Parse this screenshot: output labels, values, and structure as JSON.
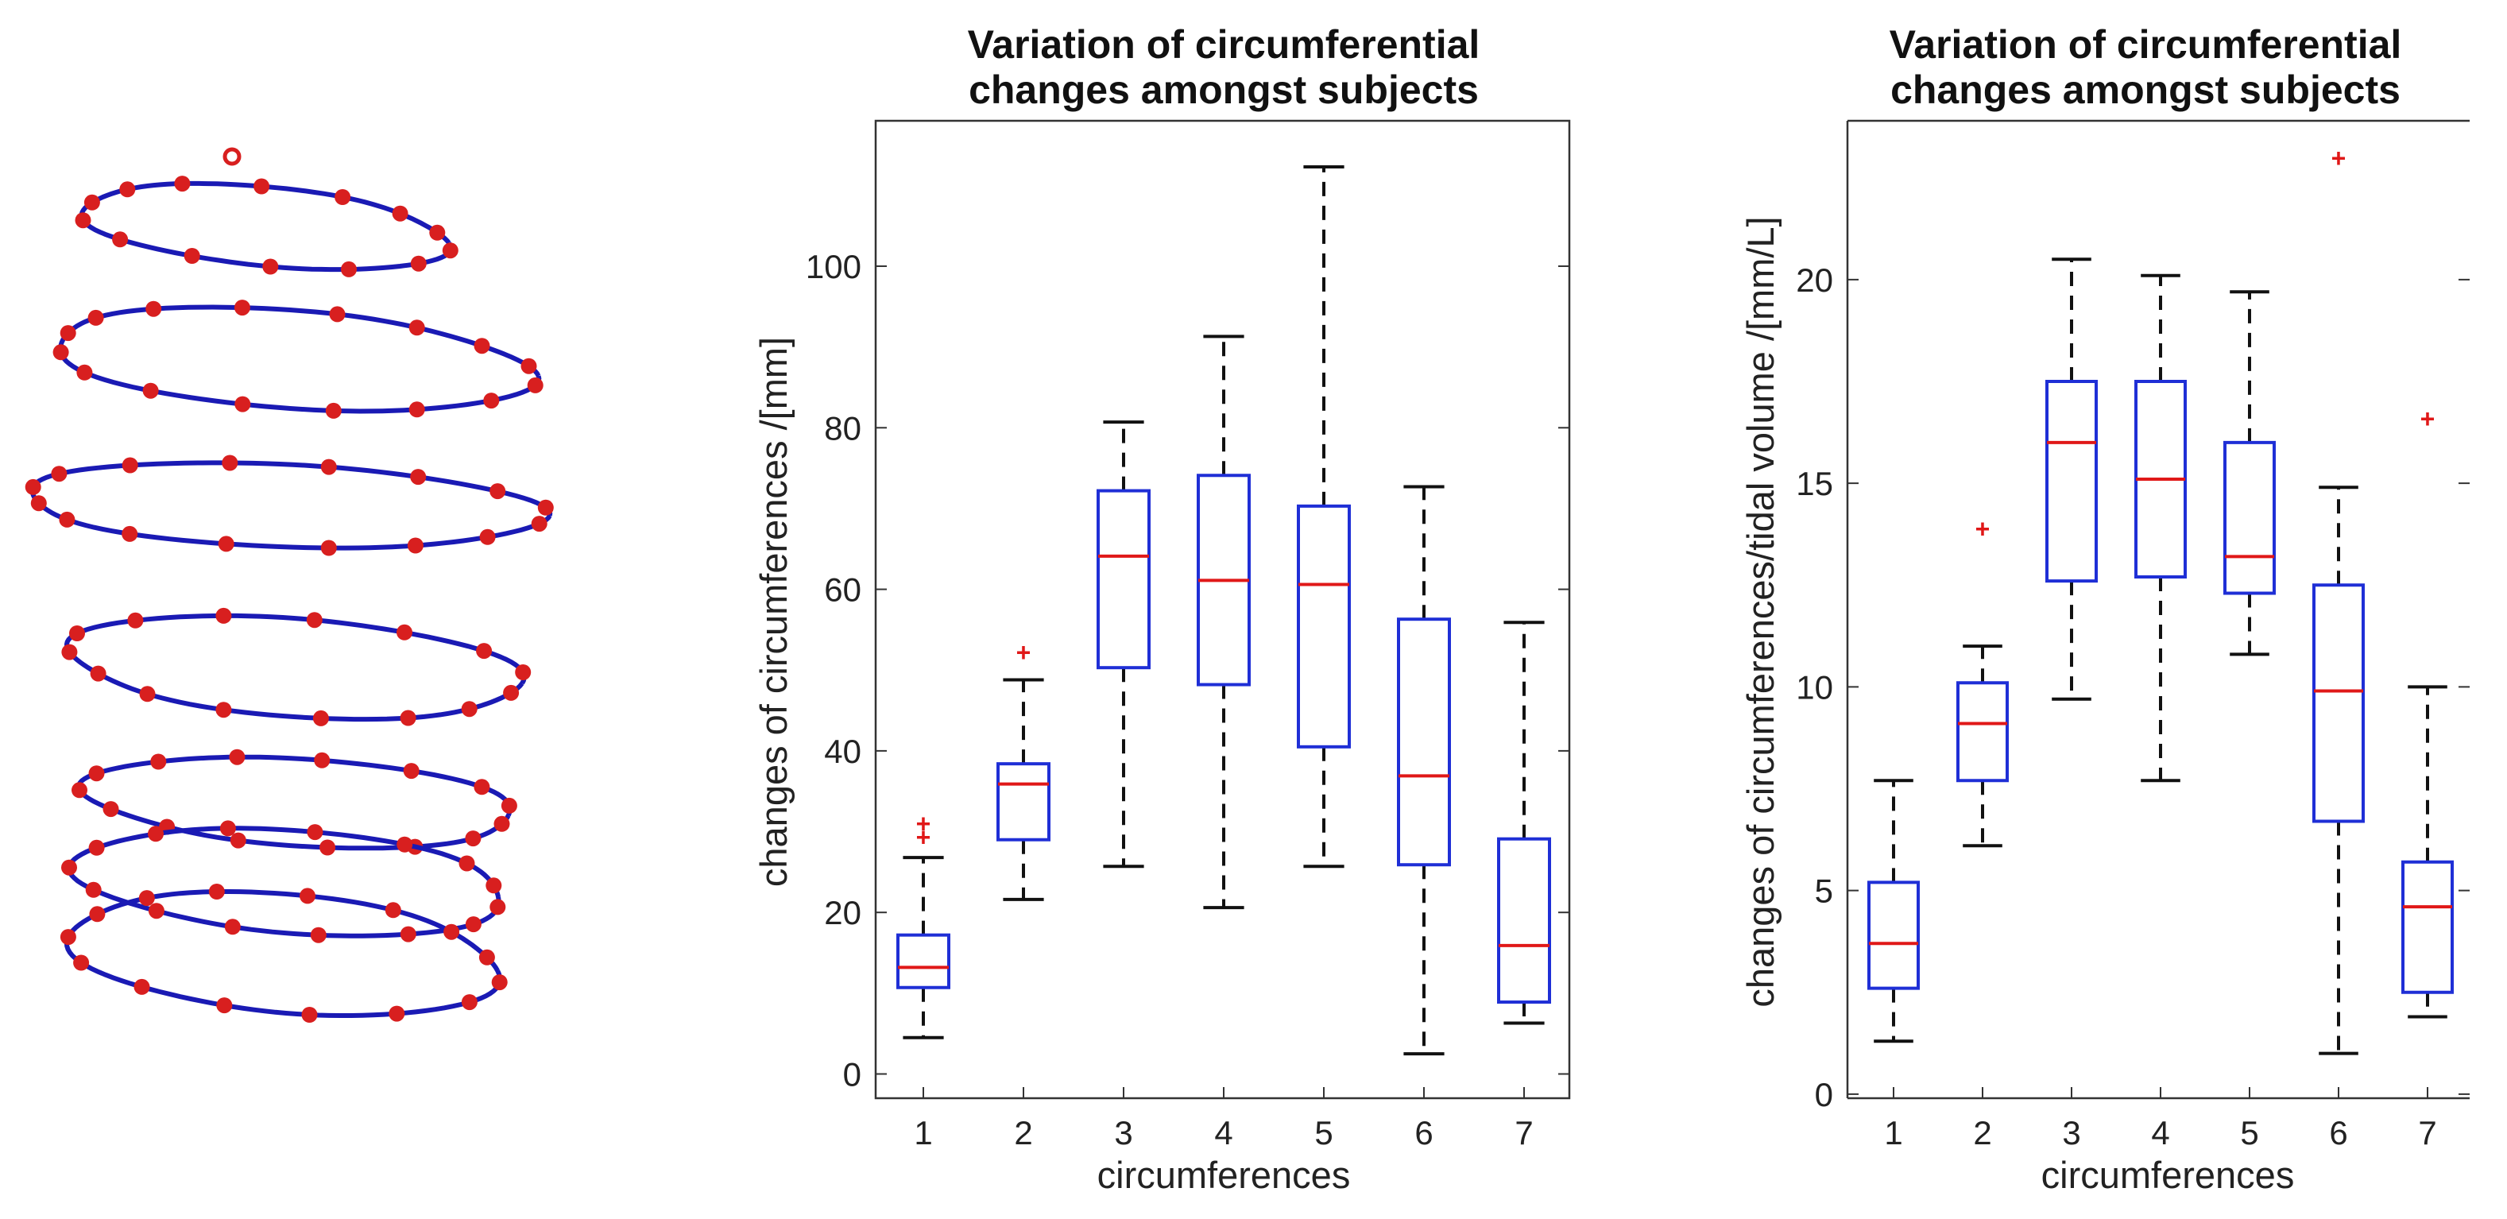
{
  "chart_data": [
    {
      "type": "diagram",
      "description_name": "rings",
      "rings": 7,
      "colors": {
        "curve": "#1a1ab4",
        "marker": "#d81f1f"
      }
    },
    {
      "type": "boxplot",
      "title": [
        "Variation of circumferential",
        "changes amongst subjects"
      ],
      "xlabel": "circumferences",
      "ylabel": "changes of circumferences /[mm]",
      "categories": [
        "1",
        "2",
        "3",
        "4",
        "5",
        "6",
        "7"
      ],
      "ylim": [
        -3,
        118
      ],
      "yticks": [
        0,
        20,
        40,
        60,
        80,
        100
      ],
      "boxes": [
        {
          "whisker_low": 4.5,
          "q1": 10.7,
          "median": 13.2,
          "q3": 17.2,
          "whisker_high": 26.8,
          "outliers": [
            29.4,
            31.1
          ],
          "outlier_label": "+"
        },
        {
          "whisker_low": 21.6,
          "q1": 29.0,
          "median": 35.9,
          "q3": 38.4,
          "whisker_high": 48.8,
          "outliers": [
            52.3
          ],
          "outlier_label": "+"
        },
        {
          "whisker_low": 25.7,
          "q1": 50.3,
          "median": 64.1,
          "q3": 72.2,
          "whisker_high": 80.7,
          "outliers": [],
          "outlier_label": "+"
        },
        {
          "whisker_low": 20.6,
          "q1": 48.2,
          "median": 61.1,
          "q3": 74.1,
          "whisker_high": 91.3,
          "outliers": [],
          "outlier_label": "+"
        },
        {
          "whisker_low": 25.7,
          "q1": 40.5,
          "median": 60.6,
          "q3": 70.3,
          "whisker_high": 112.3,
          "outliers": [],
          "outlier_label": "+"
        },
        {
          "whisker_low": 2.5,
          "q1": 25.9,
          "median": 36.9,
          "q3": 56.3,
          "whisker_high": 72.7,
          "outliers": [],
          "outlier_label": "+"
        },
        {
          "whisker_low": 6.3,
          "q1": 8.9,
          "median": 15.9,
          "q3": 29.1,
          "whisker_high": 55.9,
          "outliers": [],
          "outlier_label": "+"
        }
      ]
    },
    {
      "type": "boxplot",
      "title": [
        "Variation of circumferential",
        "changes amongst subjects"
      ],
      "xlabel": "circumferences",
      "ylabel": "changes of circumferences/tidal volume /[mm/L]",
      "categories": [
        "1",
        "2",
        "3",
        "4",
        "5",
        "6",
        "7"
      ],
      "ylim": [
        -0.1,
        23.9
      ],
      "yticks": [
        0,
        5,
        10,
        15,
        20
      ],
      "boxes": [
        {
          "whisker_low": 1.3,
          "q1": 2.6,
          "median": 3.7,
          "q3": 5.2,
          "whisker_high": 7.7,
          "outliers": [],
          "outlier_label": "+"
        },
        {
          "whisker_low": 6.1,
          "q1": 7.7,
          "median": 9.1,
          "q3": 10.1,
          "whisker_high": 11.0,
          "outliers": [
            13.9
          ],
          "outlier_label": "+"
        },
        {
          "whisker_low": 9.7,
          "q1": 12.6,
          "median": 16.0,
          "q3": 17.5,
          "whisker_high": 20.5,
          "outliers": [],
          "outlier_label": "+"
        },
        {
          "whisker_low": 7.7,
          "q1": 12.7,
          "median": 15.1,
          "q3": 17.5,
          "whisker_high": 20.1,
          "outliers": [],
          "outlier_label": "+"
        },
        {
          "whisker_low": 10.8,
          "q1": 12.3,
          "median": 13.2,
          "q3": 16.0,
          "whisker_high": 19.7,
          "outliers": [],
          "outlier_label": "+"
        },
        {
          "whisker_low": 1.0,
          "q1": 6.7,
          "median": 9.9,
          "q3": 12.5,
          "whisker_high": 14.9,
          "outliers": [
            23.0
          ],
          "outlier_label": "+"
        },
        {
          "whisker_low": 1.9,
          "q1": 2.5,
          "median": 4.6,
          "q3": 5.7,
          "whisker_high": 10.0,
          "outliers": [
            16.6
          ],
          "outlier_label": "+"
        }
      ]
    }
  ],
  "colors": {
    "box": "#1f2fd6",
    "median": "#e01818",
    "whisker": "#111111",
    "outlier": "#e01818",
    "axis": "#333333"
  }
}
